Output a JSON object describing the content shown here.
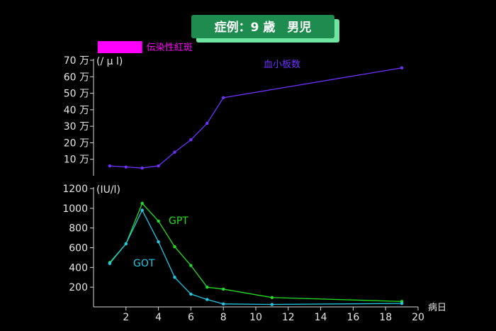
{
  "header": {
    "title": "症例：9 歳　男児"
  },
  "legend": {
    "rash_label": "伝染性紅斑"
  },
  "colors": {
    "background": "#000000",
    "axis": "#d9d9d9",
    "rash_bar": "#ff00ff",
    "platelet": "#6e32ff",
    "gpt": "#22dd22",
    "got": "#22c8e6",
    "title_box": "#1e8c4e",
    "title_shadow": "#6ee6a2"
  },
  "chart_data": [
    {
      "type": "line",
      "ylabel": "(/ μ l)",
      "ylim": [
        0,
        700000
      ],
      "y_ticks": [
        {
          "value": 100000,
          "label": "10 万"
        },
        {
          "value": 200000,
          "label": "20 万"
        },
        {
          "value": 300000,
          "label": "30 万"
        },
        {
          "value": 400000,
          "label": "40 万"
        },
        {
          "value": 500000,
          "label": "50 万"
        },
        {
          "value": 600000,
          "label": "60 万"
        },
        {
          "value": 700000,
          "label": "70 万"
        }
      ],
      "xlim": [
        0,
        20
      ],
      "rash_period": [
        1,
        3
      ],
      "series": [
        {
          "name": "血小板数",
          "x": [
            1,
            2,
            3,
            4,
            5,
            6,
            7,
            8,
            19
          ],
          "y": [
            60000,
            53000,
            47000,
            60000,
            143000,
            218000,
            318000,
            473000,
            654000
          ]
        }
      ]
    },
    {
      "type": "line",
      "ylabel": "(IU/l)",
      "ylim": [
        0,
        1200
      ],
      "y_ticks": [
        {
          "value": 200,
          "label": "200"
        },
        {
          "value": 400,
          "label": "400"
        },
        {
          "value": 600,
          "label": "600"
        },
        {
          "value": 800,
          "label": "800"
        },
        {
          "value": 1000,
          "label": "1000"
        },
        {
          "value": 1200,
          "label": "1200"
        }
      ],
      "xlabel": "病日",
      "xlim": [
        0,
        20
      ],
      "x_ticks": [
        2,
        4,
        6,
        8,
        10,
        12,
        14,
        16,
        18,
        20
      ],
      "series": [
        {
          "name": "GPT",
          "x": [
            1,
            2,
            3,
            4,
            5,
            6,
            7,
            8,
            11,
            19
          ],
          "y": [
            450,
            640,
            1050,
            870,
            610,
            420,
            200,
            180,
            95,
            55
          ]
        },
        {
          "name": "GOT",
          "x": [
            1,
            2,
            3,
            4,
            5,
            6,
            7,
            8,
            11,
            19
          ],
          "y": [
            440,
            640,
            980,
            660,
            300,
            130,
            75,
            30,
            25,
            35
          ]
        }
      ]
    }
  ]
}
